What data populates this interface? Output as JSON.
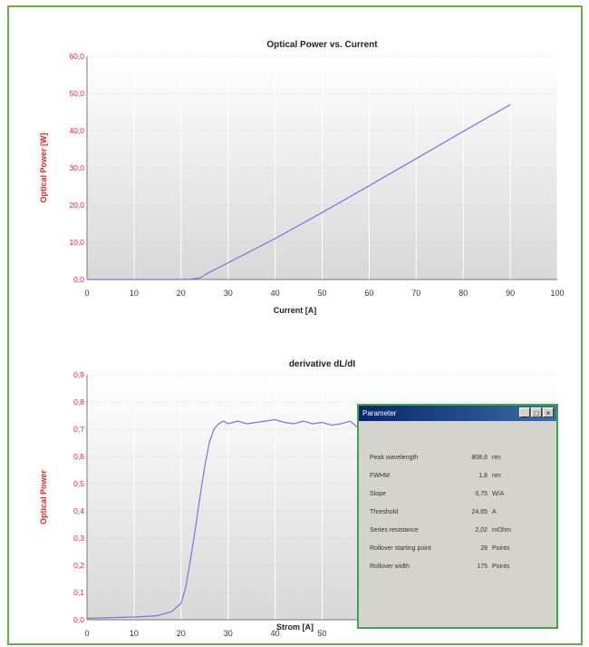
{
  "chart_data": [
    {
      "type": "line",
      "title": "Optical Power vs. Current",
      "xlabel": "Current [A]",
      "ylabel": "Optical Power [W]",
      "xlim": [
        0,
        100
      ],
      "ylim": [
        0,
        60
      ],
      "x_ticks": [
        "0",
        "10",
        "20",
        "30",
        "40",
        "50",
        "60",
        "70",
        "80",
        "90",
        "100"
      ],
      "y_ticks": [
        "0,0",
        "10,0",
        "20,0",
        "30,0",
        "40,0",
        "50,0",
        "60,0"
      ],
      "grid": true,
      "series_color": "#7777dd",
      "axis_label_color": "#e8202a",
      "series": [
        {
          "x": [
            0,
            10,
            20,
            22,
            24,
            25,
            26,
            30,
            40,
            50,
            60,
            70,
            80,
            90
          ],
          "y": [
            0,
            0,
            0,
            0.1,
            0.4,
            1.2,
            1.9,
            4.5,
            11.0,
            18.0,
            25.2,
            32.5,
            39.8,
            47.0
          ]
        }
      ]
    },
    {
      "type": "line",
      "title": "derivative  dL/dI",
      "xlabel": "Strom [A]",
      "ylabel": "Optical Power",
      "xlim": [
        0,
        100
      ],
      "ylim": [
        0,
        0.9
      ],
      "x_ticks": [
        "0",
        "10",
        "20",
        "30",
        "40",
        "50"
      ],
      "y_ticks": [
        "0,0",
        "0,1",
        "0,2",
        "0,3",
        "0,4",
        "0,5",
        "0,6",
        "0,7",
        "0,8",
        "0,9"
      ],
      "grid": true,
      "series_color": "#7777dd",
      "axis_label_color": "#e8202a",
      "series": [
        {
          "x": [
            0,
            5,
            10,
            15,
            18,
            20,
            21,
            22,
            23,
            24,
            25,
            26,
            27,
            28,
            29,
            30,
            32,
            34,
            36,
            38,
            40,
            42,
            44,
            46,
            48,
            50,
            52,
            54,
            56,
            58,
            60
          ],
          "y": [
            0.005,
            0.008,
            0.01,
            0.015,
            0.03,
            0.06,
            0.12,
            0.22,
            0.33,
            0.45,
            0.56,
            0.65,
            0.7,
            0.72,
            0.73,
            0.72,
            0.73,
            0.72,
            0.725,
            0.73,
            0.735,
            0.725,
            0.72,
            0.73,
            0.72,
            0.725,
            0.715,
            0.72,
            0.73,
            0.7,
            0.72
          ]
        }
      ]
    }
  ],
  "param_window": {
    "title": "Parameter",
    "buttons": [
      "_",
      "□",
      "×"
    ],
    "rows": [
      {
        "label": "Peak wavelength",
        "value": "808,6",
        "unit": "nm"
      },
      {
        "label": "FWHM",
        "value": "1,8",
        "unit": "nm"
      },
      {
        "label": "Slope",
        "value": "0,75",
        "unit": "W/A"
      },
      {
        "label": "Threshold",
        "value": "24,65",
        "unit": "A"
      },
      {
        "label": "Series resistance",
        "value": "2,02",
        "unit": "mOhm"
      },
      {
        "label": "Rollover starting point",
        "value": "28",
        "unit": "Points"
      },
      {
        "label": "Rollover width",
        "value": "175",
        "unit": "Points"
      }
    ]
  }
}
